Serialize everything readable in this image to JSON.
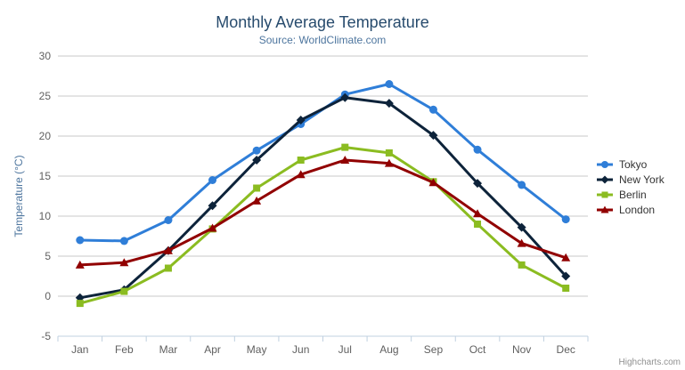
{
  "chart": {
    "title": "Monthly Average Temperature",
    "subtitle": "Source: WorldClimate.com",
    "credit": "Highcharts.com",
    "export_menu_icon": "hamburger-icon"
  },
  "chart_data": {
    "type": "line",
    "title": "Monthly Average Temperature",
    "subtitle": "Source: WorldClimate.com",
    "xlabel": "",
    "ylabel": "Temperature (°C)",
    "ylim": [
      -5,
      30
    ],
    "ytick_step": 5,
    "grid": true,
    "legend_position": "right",
    "grid_color": "#c9c9c9",
    "axis_line_color": "#c0d0e0",
    "categories": [
      "Jan",
      "Feb",
      "Mar",
      "Apr",
      "May",
      "Jun",
      "Jul",
      "Aug",
      "Sep",
      "Oct",
      "Nov",
      "Dec"
    ],
    "series": [
      {
        "name": "Tokyo",
        "color": "#2f7ed8",
        "marker": "circle",
        "values": [
          7.0,
          6.9,
          9.5,
          14.5,
          18.2,
          21.5,
          25.2,
          26.5,
          23.3,
          18.3,
          13.9,
          9.6
        ]
      },
      {
        "name": "New York",
        "color": "#0d233a",
        "marker": "diamond",
        "values": [
          -0.2,
          0.8,
          5.7,
          11.3,
          17.0,
          22.0,
          24.8,
          24.1,
          20.1,
          14.1,
          8.6,
          2.5
        ]
      },
      {
        "name": "Berlin",
        "color": "#8bbc21",
        "marker": "square",
        "values": [
          -0.9,
          0.6,
          3.5,
          8.4,
          13.5,
          17.0,
          18.6,
          17.9,
          14.3,
          9.0,
          3.9,
          1.0
        ]
      },
      {
        "name": "London",
        "color": "#910000",
        "marker": "triangle",
        "values": [
          3.9,
          4.2,
          5.7,
          8.5,
          11.9,
          15.2,
          17.0,
          16.6,
          14.2,
          10.3,
          6.6,
          4.8
        ]
      }
    ]
  }
}
